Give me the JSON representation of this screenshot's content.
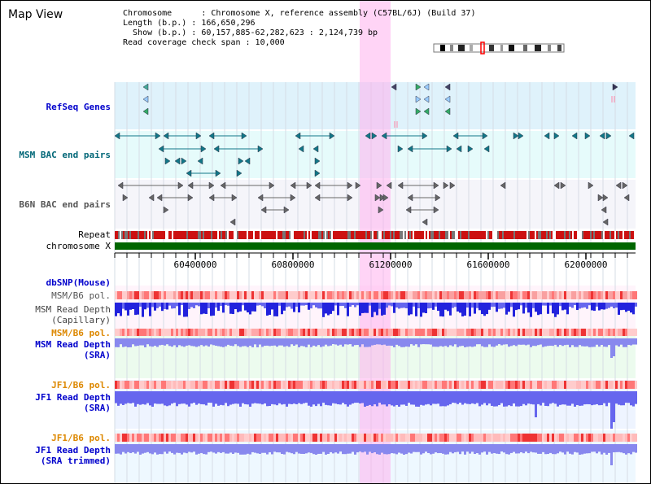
{
  "page_title": "Map View",
  "info": {
    "chromosome": "Chromosome      : Chromosome X, reference assembly (C57BL/6J) (Build 37)",
    "length": "Length (b.p.) : 166,650,296",
    "show": "  Show (b.p.) : 60,157,885-62,282,623 : 2,124,739 bp",
    "span": "Read coverage check span : 10,000"
  },
  "tracks": {
    "refseq": "RefSeq Genes",
    "msm_bac": "MSM BAC end pairs",
    "b6n_bac": "B6N BAC end pairs",
    "repeat": "Repeat",
    "chromosome": "chromosome X",
    "dbsnp": "dbSNP(Mouse)",
    "msm_b6_pol_1": "MSM/B6 pol.",
    "msm_depth_cap_1": "MSM Read Depth",
    "msm_depth_cap_2": "(Capillary)",
    "msm_b6_pol_2": "MSM/B6 pol.",
    "msm_depth_sra_1": "MSM Read Depth",
    "msm_depth_sra_2": "(SRA)",
    "jf1_b6_pol_1": "JF1/B6 pol.",
    "jf1_depth_sra_1": "JF1 Read Depth",
    "jf1_depth_sra_2": "(SRA)",
    "jf1_b6_pol_2": "JF1/B6 pol.",
    "jf1_depth_trim_1": "JF1 Read Depth",
    "jf1_depth_trim_2": "(SRA trimmed)"
  },
  "axis": {
    "ticks": [
      "60400000",
      "60800000",
      "61200000",
      "61600000",
      "62000000"
    ]
  },
  "colors": {
    "blue_label": "#0000cc",
    "teal_label": "#006677",
    "gray_label": "#555555",
    "orange_label": "#dd8800",
    "chromosome": "#006600",
    "highlight": "#ffb0ee"
  }
}
